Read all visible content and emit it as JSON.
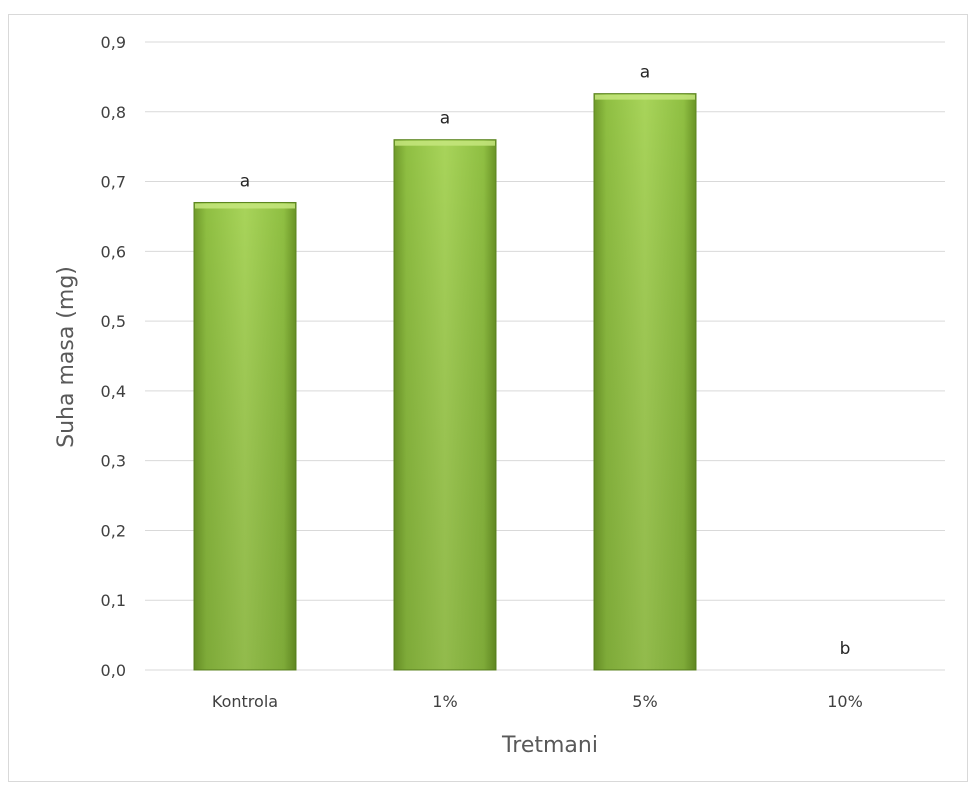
{
  "chart_data": {
    "type": "bar",
    "title": "",
    "xlabel": "Tretmani",
    "ylabel": "Suha masa (mg)",
    "categories": [
      "Kontrola",
      "1%",
      "5%",
      "10%"
    ],
    "values": [
      0.67,
      0.76,
      0.826,
      0.0
    ],
    "data_labels": [
      "a",
      "a",
      "a",
      "b"
    ],
    "ylim": [
      0,
      0.9
    ],
    "yticks": [
      "0,0",
      "0,1",
      "0,2",
      "0,3",
      "0,4",
      "0,5",
      "0,6",
      "0,7",
      "0,8",
      "0,9"
    ],
    "grid": true,
    "legend": "none",
    "colors": {
      "bar_light": "#a9d65a",
      "bar_mid": "#8cbf3f",
      "bar_dark": "#5f8a22",
      "gridline": "#d9d9d9",
      "text": "#404040"
    }
  }
}
